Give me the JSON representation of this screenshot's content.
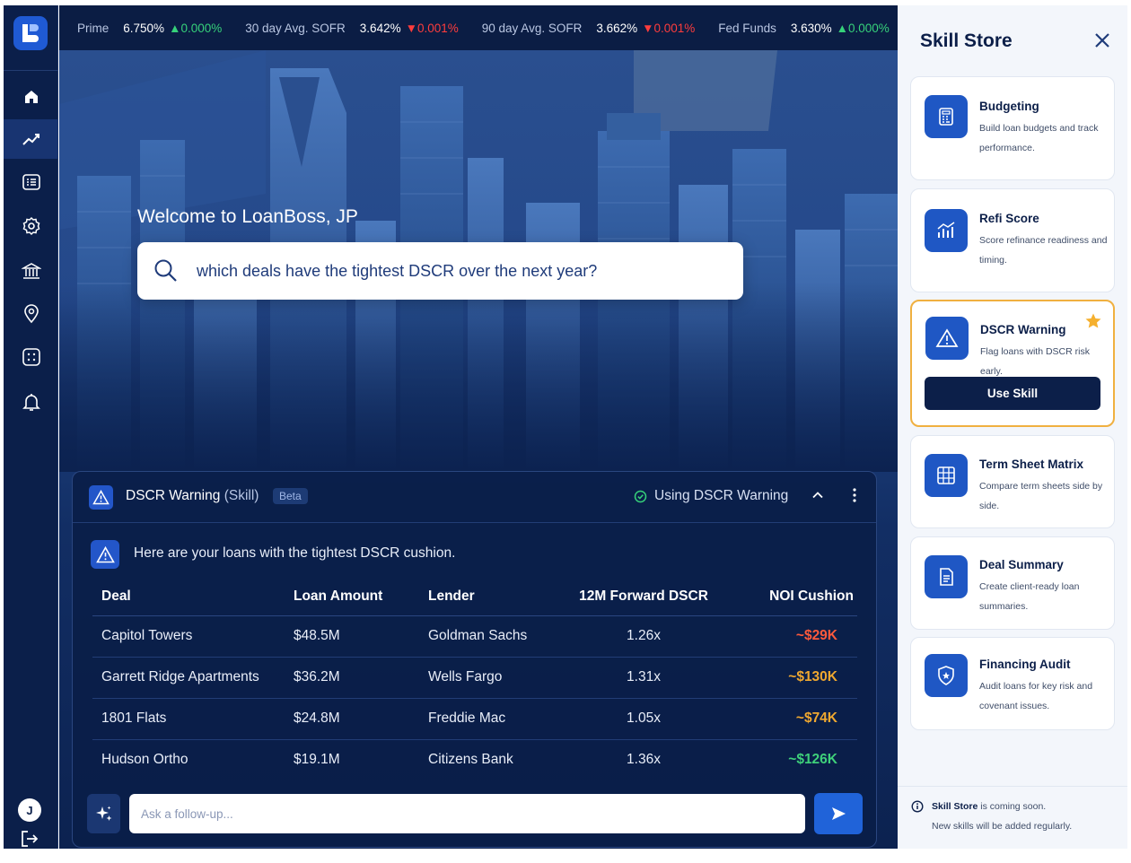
{
  "colors": {
    "navy": "#0b1f4a",
    "accent": "#1f57c4",
    "up": "#36d17a",
    "down": "#ff3c3c",
    "noi_red": "#ff5a3c",
    "noi_orange": "#f0a830",
    "noi_green": "#3fd07a",
    "selected_border": "#f0b040"
  },
  "nav": {
    "logo": "loanboss-logo-icon",
    "items": [
      "home-icon",
      "trend-icon",
      "list-icon",
      "gear-icon",
      "bank-icon",
      "location-icon",
      "dice-icon",
      "bell-icon"
    ],
    "avatar": "J",
    "logout": "logout-icon"
  },
  "ticker": [
    {
      "label": "Prime",
      "value": "6.750%",
      "change": "0.000%",
      "direction": "up"
    },
    {
      "label": "30 day Avg. SOFR",
      "value": "3.642%",
      "change": "0.001%",
      "direction": "down"
    },
    {
      "label": "90 day Avg. SOFR",
      "value": "3.662%",
      "change": "0.001%",
      "direction": "down"
    },
    {
      "label": "Fed Funds",
      "value": "3.630%",
      "change": "0.000%",
      "direction": "up"
    }
  ],
  "hero": {
    "welcome": "Welcome to LoanBoss, JP",
    "query": "which deals have the tightest DSCR over the next year?"
  },
  "skill_panel": {
    "title": "DSCR Warning",
    "title_suffix": "(Skill)",
    "badge": "Beta",
    "status": "Using DSCR Warning",
    "message": "Here are your loans with the tightest DSCR cushion.",
    "columns": [
      "Deal",
      "Loan Amount",
      "Lender",
      "12M Forward DSCR",
      "NOI Cushion"
    ],
    "rows": [
      {
        "deal": "Capitol Towers",
        "amount": "$48.5M",
        "lender": "Goldman Sachs",
        "dscr": "1.26x",
        "noi": "~$29K",
        "tone": "red"
      },
      {
        "deal": "Garrett Ridge Apartments",
        "amount": "$36.2M",
        "lender": "Wells Fargo",
        "dscr": "1.31x",
        "noi": "~$130K",
        "tone": "orange"
      },
      {
        "deal": "1801 Flats",
        "amount": "$24.8M",
        "lender": "Freddie Mac",
        "dscr": "1.05x",
        "noi": "~$74K",
        "tone": "orange"
      },
      {
        "deal": "Hudson Ortho",
        "amount": "$19.1M",
        "lender": "Citizens Bank",
        "dscr": "1.36x",
        "noi": "~$126K",
        "tone": "green"
      }
    ],
    "followup_placeholder": "Ask a follow-up..."
  },
  "store": {
    "title": "Skill Store",
    "use_label": "Use Skill",
    "skills": [
      {
        "name": "Budgeting",
        "desc": "Build loan budgets and track performance.",
        "icon": "calculator-icon"
      },
      {
        "name": "Refi Score",
        "desc": "Score refinance readiness and timing.",
        "icon": "bar-chart-icon"
      },
      {
        "name": "DSCR Warning",
        "desc": "Flag loans with DSCR risk early.",
        "icon": "warning-icon",
        "selected": true,
        "starred": true
      },
      {
        "name": "Term Sheet Matrix",
        "desc": "Compare term sheets side by side.",
        "icon": "grid-icon"
      },
      {
        "name": "Deal Summary",
        "desc": "Create client-ready loan summaries.",
        "icon": "document-icon"
      },
      {
        "name": "Financing Audit",
        "desc": "Audit loans for key risk and covenant issues.",
        "icon": "shield-star-icon"
      }
    ],
    "note_bold": "Skill Store",
    "note_rest": " is coming soon.",
    "note_line2": "New skills will be added regularly."
  }
}
